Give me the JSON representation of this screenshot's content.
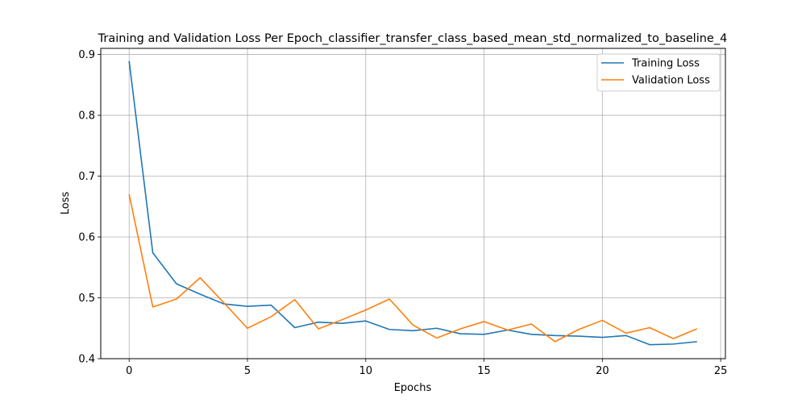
{
  "chart_data": {
    "type": "line",
    "title": "Training and Validation Loss Per Epoch_classifier_transfer_class_based_mean_std_normalized_to_baseline_4",
    "xlabel": "Epochs",
    "ylabel": "Loss",
    "xlim": [
      -1.2,
      25.2
    ],
    "ylim": [
      0.4,
      0.91
    ],
    "xticks": [
      0,
      5,
      10,
      15,
      20,
      25
    ],
    "yticks": [
      0.4,
      0.5,
      0.6,
      0.7,
      0.8,
      0.9
    ],
    "xtick_labels": [
      "0",
      "5",
      "10",
      "15",
      "20",
      "25"
    ],
    "ytick_labels": [
      "0.4",
      "0.5",
      "0.6",
      "0.7",
      "0.8",
      "0.9"
    ],
    "grid": true,
    "legend_position": "top-right",
    "x": [
      0,
      1,
      2,
      3,
      4,
      5,
      6,
      7,
      8,
      9,
      10,
      11,
      12,
      13,
      14,
      15,
      16,
      17,
      18,
      19,
      20,
      21,
      22,
      23,
      24
    ],
    "series": [
      {
        "name": "Training Loss",
        "color": "#1f77b4",
        "values": [
          0.889,
          0.574,
          0.523,
          0.506,
          0.49,
          0.486,
          0.488,
          0.451,
          0.46,
          0.458,
          0.462,
          0.448,
          0.446,
          0.45,
          0.441,
          0.44,
          0.447,
          0.44,
          0.438,
          0.437,
          0.435,
          0.438,
          0.423,
          0.424,
          0.428
        ]
      },
      {
        "name": "Validation Loss",
        "color": "#ff7f0e",
        "values": [
          0.67,
          0.485,
          0.498,
          0.533,
          0.492,
          0.45,
          0.469,
          0.497,
          0.449,
          0.464,
          0.48,
          0.498,
          0.455,
          0.434,
          0.449,
          0.461,
          0.447,
          0.457,
          0.428,
          0.448,
          0.463,
          0.442,
          0.451,
          0.433,
          0.449
        ]
      }
    ]
  }
}
